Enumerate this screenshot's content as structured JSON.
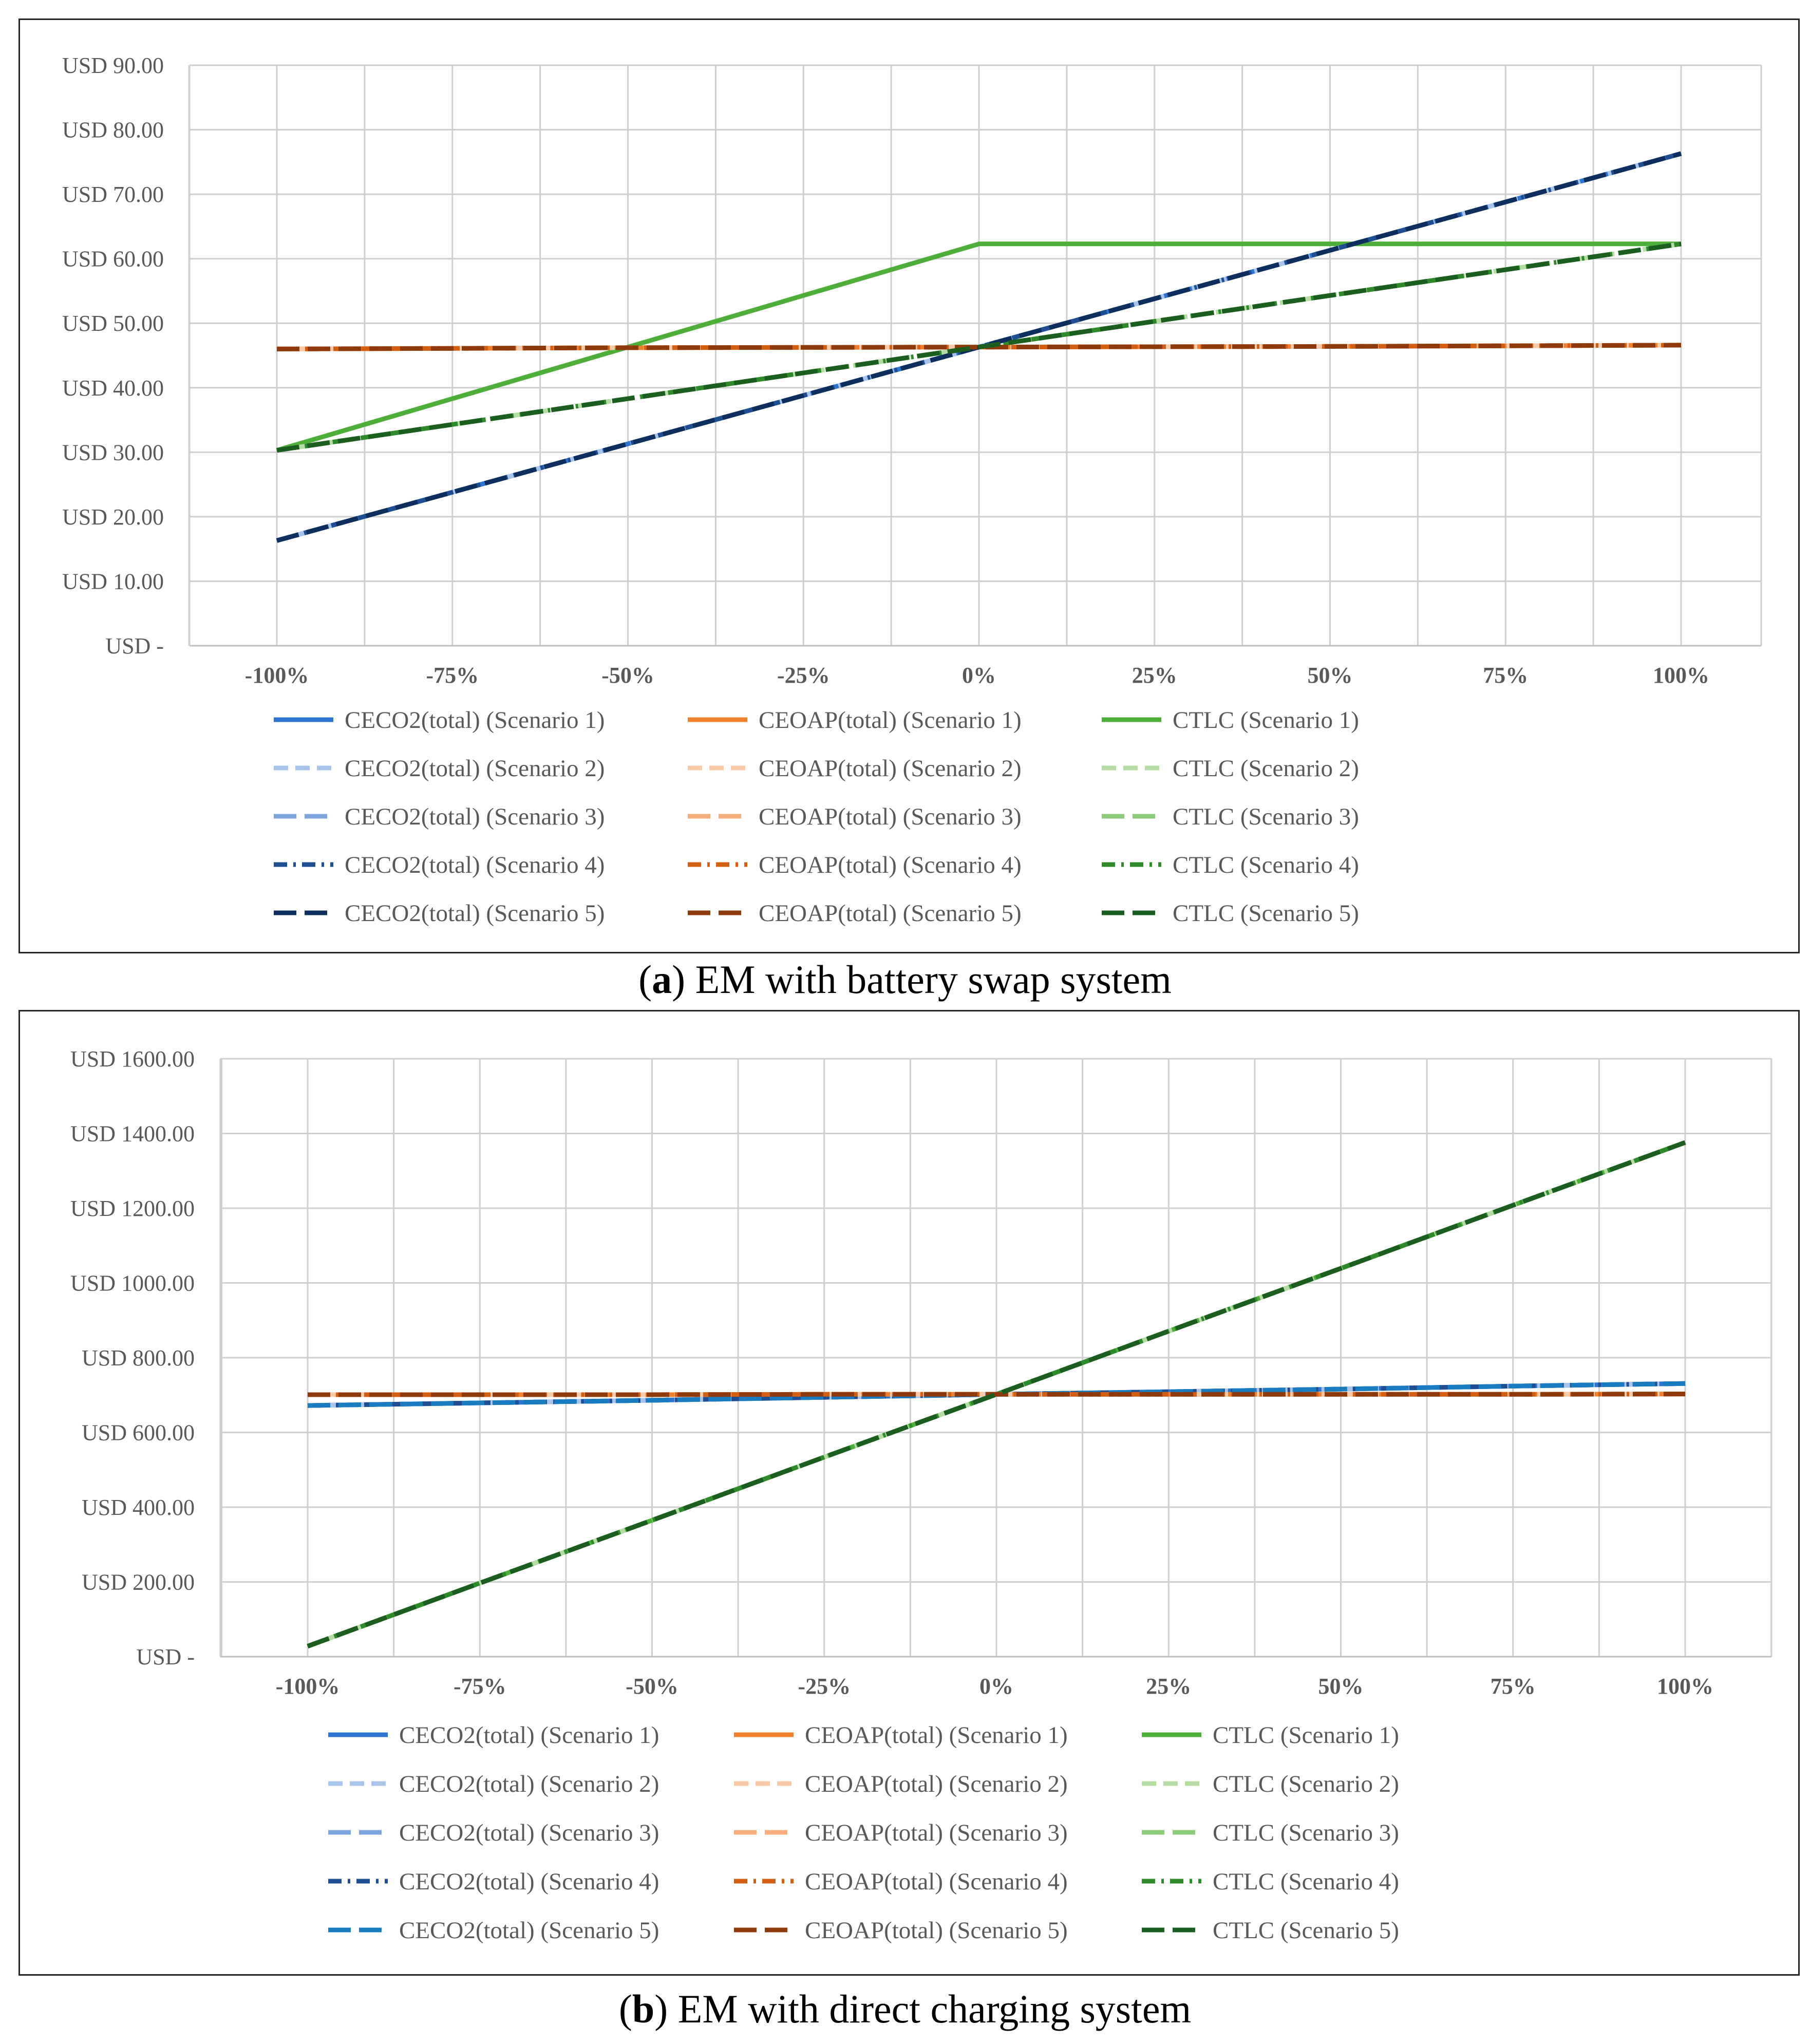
{
  "chart_data": [
    {
      "id": "a",
      "type": "line",
      "caption_letter": "a",
      "caption_rest": " EM with battery swap system",
      "x": [
        "-100%",
        "-75%",
        "-50%",
        "-25%",
        "0%",
        "25%",
        "50%",
        "75%",
        "100%"
      ],
      "x_values": [
        -100,
        -75,
        -50,
        -25,
        0,
        25,
        50,
        75,
        100
      ],
      "ylim": [
        0,
        90
      ],
      "y_ticks": [
        0,
        10,
        20,
        30,
        40,
        50,
        60,
        70,
        80,
        90
      ],
      "y_tick_labels": [
        "USD -",
        "USD 10.00",
        "USD 20.00",
        "USD 30.00",
        "USD 40.00",
        "USD 50.00",
        "USD 60.00",
        "USD 70.00",
        "USD 80.00",
        "USD 90.00"
      ],
      "grid": true,
      "legend_position": "bottom",
      "series": [
        {
          "name": "CECO2(total) (Scenario 1)",
          "color": "#2E75D2",
          "dash": "solid",
          "values": [
            16.3,
            23.8,
            31.3,
            38.8,
            46.3,
            53.8,
            61.3,
            68.8,
            76.3
          ]
        },
        {
          "name": "CEOAP(total) (Scenario 1)",
          "color": "#F07F2E",
          "dash": "solid",
          "values": [
            46.0,
            46.1,
            46.2,
            46.25,
            46.3,
            46.35,
            46.4,
            46.5,
            46.6
          ]
        },
        {
          "name": "CTLC (Scenario 1)",
          "color": "#4EAE3A",
          "dash": "solid",
          "values": [
            30.3,
            38.3,
            46.3,
            54.3,
            62.3,
            62.3,
            62.3,
            62.3,
            62.3
          ]
        },
        {
          "name": "CECO2(total) (Scenario 2)",
          "color": "#A9C4EA",
          "dash": "dash",
          "values": [
            16.3,
            23.8,
            31.3,
            38.8,
            46.3,
            53.8,
            61.3,
            68.8,
            76.3
          ]
        },
        {
          "name": "CEOAP(total) (Scenario 2)",
          "color": "#F9C9A8",
          "dash": "dash",
          "values": [
            46.0,
            46.1,
            46.2,
            46.25,
            46.3,
            46.35,
            46.4,
            46.5,
            46.6
          ]
        },
        {
          "name": "CTLC (Scenario 2)",
          "color": "#B5DCA5",
          "dash": "dash",
          "values": [
            30.3,
            34.3,
            38.3,
            42.3,
            46.3,
            50.3,
            54.3,
            58.3,
            62.3
          ]
        },
        {
          "name": "CECO2(total) (Scenario 3)",
          "color": "#7EA6DC",
          "dash": "longdash",
          "values": [
            16.3,
            23.8,
            31.3,
            38.8,
            46.3,
            53.8,
            61.3,
            68.8,
            76.3
          ]
        },
        {
          "name": "CEOAP(total) (Scenario 3)",
          "color": "#F7AE7E",
          "dash": "longdash",
          "values": [
            46.0,
            46.1,
            46.2,
            46.25,
            46.3,
            46.35,
            46.4,
            46.5,
            46.6
          ]
        },
        {
          "name": "CTLC (Scenario 3)",
          "color": "#8CCB79",
          "dash": "longdash",
          "values": [
            30.3,
            34.3,
            38.3,
            42.3,
            46.3,
            50.3,
            54.3,
            58.3,
            62.3
          ]
        },
        {
          "name": "CECO2(total) (Scenario 4)",
          "color": "#1F4E92",
          "dash": "dashdot",
          "values": [
            16.3,
            23.8,
            31.3,
            38.8,
            46.3,
            53.8,
            61.3,
            68.8,
            76.3
          ]
        },
        {
          "name": "CEOAP(total) (Scenario 4)",
          "color": "#D45F13",
          "dash": "dashdot",
          "values": [
            46.0,
            46.1,
            46.2,
            46.25,
            46.3,
            46.35,
            46.4,
            46.5,
            46.6
          ]
        },
        {
          "name": "CTLC (Scenario 4)",
          "color": "#2E8A2A",
          "dash": "dashdot",
          "values": [
            30.3,
            34.3,
            38.3,
            42.3,
            46.3,
            50.3,
            54.3,
            58.3,
            62.3
          ]
        },
        {
          "name": "CECO2(total) (Scenario 5)",
          "color": "#0E2F5E",
          "dash": "longdash",
          "values": [
            16.3,
            23.8,
            31.3,
            38.8,
            46.3,
            53.8,
            61.3,
            68.8,
            76.3
          ]
        },
        {
          "name": "CEOAP(total) (Scenario 5)",
          "color": "#8E3A0C",
          "dash": "longdash",
          "values": [
            46.0,
            46.1,
            46.2,
            46.25,
            46.3,
            46.35,
            46.4,
            46.5,
            46.6
          ]
        },
        {
          "name": "CTLC (Scenario 5)",
          "color": "#1B5E20",
          "dash": "longdash",
          "values": [
            30.3,
            34.3,
            38.3,
            42.3,
            46.3,
            50.3,
            54.3,
            58.3,
            62.3
          ]
        }
      ]
    },
    {
      "id": "b",
      "type": "line",
      "caption_letter": "b",
      "caption_rest": " EM with direct charging system",
      "x": [
        "-100%",
        "-75%",
        "-50%",
        "-25%",
        "0%",
        "25%",
        "50%",
        "75%",
        "100%"
      ],
      "x_values": [
        -100,
        -75,
        -50,
        -25,
        0,
        25,
        50,
        75,
        100
      ],
      "ylim": [
        0,
        1600
      ],
      "y_ticks": [
        0,
        200,
        400,
        600,
        800,
        1000,
        1200,
        1400,
        1600
      ],
      "y_tick_labels": [
        "USD -",
        "USD 200.00",
        "USD 400.00",
        "USD 600.00",
        "USD 800.00",
        "USD 1000.00",
        "USD 1200.00",
        "USD 1400.00",
        "USD 1600.00"
      ],
      "grid": true,
      "legend_position": "bottom",
      "series": [
        {
          "name": "CECO2(total) (Scenario 1)",
          "color": "#2E75D2",
          "dash": "solid",
          "values": [
            672,
            679,
            686,
            694,
            702,
            709,
            716,
            724,
            731
          ]
        },
        {
          "name": "CEOAP(total) (Scenario 1)",
          "color": "#F07F2E",
          "dash": "solid",
          "values": [
            701,
            701,
            701,
            702,
            702,
            702,
            702,
            702,
            703
          ]
        },
        {
          "name": "CTLC (Scenario 1)",
          "color": "#4EAE3A",
          "dash": "solid",
          "values": [
            28,
            197,
            365,
            534,
            702,
            871,
            1039,
            1208,
            1376
          ]
        },
        {
          "name": "CECO2(total) (Scenario 2)",
          "color": "#A9C4EA",
          "dash": "dash",
          "values": [
            672,
            679,
            686,
            694,
            702,
            709,
            716,
            724,
            731
          ]
        },
        {
          "name": "CEOAP(total) (Scenario 2)",
          "color": "#F9C9A8",
          "dash": "dash",
          "values": [
            701,
            701,
            701,
            702,
            702,
            702,
            702,
            702,
            703
          ]
        },
        {
          "name": "CTLC (Scenario 2)",
          "color": "#B5DCA5",
          "dash": "dash",
          "values": [
            28,
            197,
            365,
            534,
            702,
            871,
            1039,
            1208,
            1376
          ]
        },
        {
          "name": "CECO2(total) (Scenario 3)",
          "color": "#7EA6DC",
          "dash": "longdash",
          "values": [
            672,
            679,
            686,
            694,
            702,
            709,
            716,
            724,
            731
          ]
        },
        {
          "name": "CEOAP(total) (Scenario 3)",
          "color": "#F7AE7E",
          "dash": "longdash",
          "values": [
            701,
            701,
            701,
            702,
            702,
            702,
            702,
            702,
            703
          ]
        },
        {
          "name": "CTLC (Scenario 3)",
          "color": "#8CCB79",
          "dash": "longdash",
          "values": [
            28,
            197,
            365,
            534,
            702,
            871,
            1039,
            1208,
            1376
          ]
        },
        {
          "name": "CECO2(total) (Scenario 4)",
          "color": "#1F4E92",
          "dash": "dashdot",
          "values": [
            672,
            679,
            686,
            694,
            702,
            709,
            716,
            724,
            731
          ]
        },
        {
          "name": "CEOAP(total) (Scenario 4)",
          "color": "#D45F13",
          "dash": "dashdot",
          "values": [
            701,
            701,
            701,
            702,
            702,
            702,
            702,
            702,
            703
          ]
        },
        {
          "name": "CTLC (Scenario 4)",
          "color": "#2E8A2A",
          "dash": "dashdot",
          "values": [
            28,
            197,
            365,
            534,
            702,
            871,
            1039,
            1208,
            1376
          ]
        },
        {
          "name": "CECO2(total) (Scenario 5)",
          "color": "#1A7CC0",
          "dash": "longdash",
          "values": [
            672,
            679,
            686,
            694,
            702,
            709,
            716,
            724,
            731
          ]
        },
        {
          "name": "CEOAP(total) (Scenario 5)",
          "color": "#8E3A0C",
          "dash": "longdash",
          "values": [
            701,
            701,
            701,
            702,
            702,
            702,
            702,
            702,
            703
          ]
        },
        {
          "name": "CTLC (Scenario 5)",
          "color": "#1B5E20",
          "dash": "longdash",
          "values": [
            28,
            197,
            365,
            534,
            702,
            871,
            1039,
            1208,
            1376
          ]
        }
      ]
    }
  ]
}
